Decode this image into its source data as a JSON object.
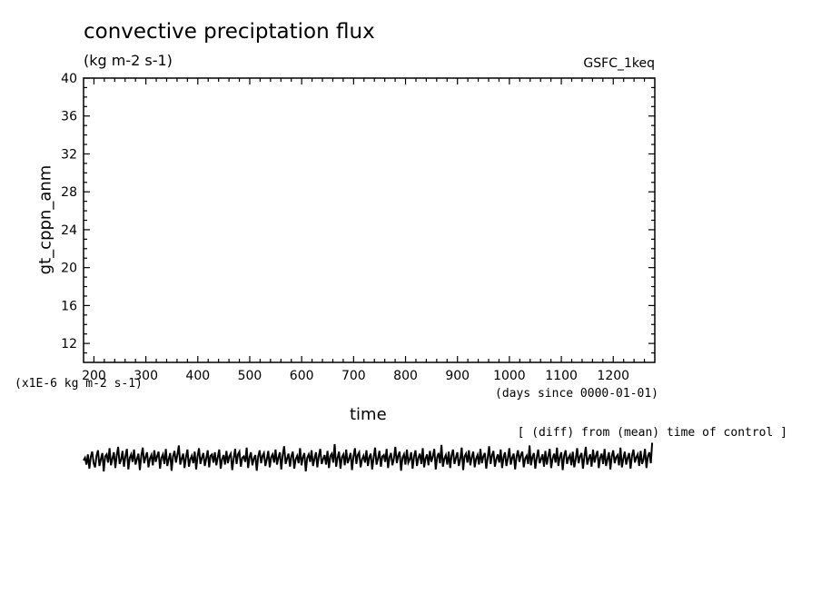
{
  "chart_data": {
    "type": "line",
    "title": "convective preciptation flux",
    "units": "(kg m-2 s-1)",
    "model": "GSFC_1keq",
    "ylabel": "gt_cppn_anm",
    "xlabel": "time",
    "scale_note": "(x1E-6 kg m-2 s-1)",
    "x_units": "(days since 0000-01-01)",
    "diff_note": "[ (diff) from (mean) time of control ]",
    "xlim": [
      180,
      1280
    ],
    "ylim": [
      10,
      40
    ],
    "xticks": [
      200,
      300,
      400,
      500,
      600,
      700,
      800,
      900,
      1000,
      1100,
      1200
    ],
    "yticks": [
      12,
      16,
      20,
      24,
      28,
      32,
      36,
      40
    ],
    "grid": false,
    "series": [
      {
        "x_start": 180,
        "x_end": 1275,
        "values": [
          0.0,
          0.4,
          -0.6,
          0.9,
          -1.2,
          0.5,
          1.3,
          -0.4,
          -1.0,
          0.7,
          1.5,
          -0.8,
          0.2,
          1.1,
          -1.6,
          0.6,
          0.9,
          -0.3,
          1.8,
          -0.7,
          0.3,
          1.2,
          -1.1,
          0.8,
          2.0,
          -0.5,
          0.1,
          1.4,
          -0.9,
          0.6,
          1.7,
          -1.3,
          0.4,
          0.9,
          -0.2,
          1.6,
          -0.6,
          0.2,
          1.0,
          -1.4,
          0.7,
          1.9,
          -0.4,
          0.5,
          1.2,
          -1.0,
          0.3,
          0.8,
          -0.7,
          1.5,
          -0.2,
          0.6,
          1.3,
          -1.2,
          0.4,
          0.9,
          -0.5,
          1.7,
          -0.8,
          0.2,
          1.1,
          -1.5,
          0.6,
          1.4,
          -0.3,
          0.8,
          2.2,
          -0.6,
          0.3,
          1.0,
          -1.1,
          0.5,
          1.6,
          -0.9,
          0.2,
          0.7,
          -0.4,
          1.3,
          -1.3,
          0.6,
          1.8,
          -0.5,
          0.4,
          1.1,
          -0.8,
          0.3,
          1.5,
          -1.0,
          0.7,
          0.9,
          -0.3,
          1.2,
          -0.7,
          0.5,
          1.6,
          -1.2,
          0.2,
          0.8,
          -0.6,
          1.4,
          -0.4,
          0.6,
          1.0,
          -1.4,
          0.3,
          1.7,
          -0.5,
          0.9,
          1.3,
          -0.9,
          0.4,
          0.6,
          -0.2,
          1.9,
          -1.1,
          0.5,
          1.2,
          -0.7,
          0.3,
          0.8,
          -1.5,
          0.6,
          1.5,
          -0.4,
          0.7,
          1.1,
          -0.8,
          0.2,
          1.4,
          -1.0,
          0.5,
          0.9,
          -0.3,
          1.6,
          -0.6,
          0.4,
          1.2,
          -1.3,
          0.8,
          2.1,
          -0.5,
          0.3,
          1.0,
          -0.9,
          0.6,
          1.3,
          -1.2,
          0.2,
          0.7,
          -0.4,
          1.8,
          -0.7,
          0.5,
          1.1,
          -1.6,
          0.4,
          0.9,
          -0.2,
          1.5,
          -0.8,
          0.3,
          1.2,
          -1.0,
          0.6,
          1.7,
          -0.5,
          0.2,
          0.8,
          -0.6,
          1.4,
          -1.1,
          0.7,
          1.0,
          -0.3,
          2.4,
          -0.9,
          0.4,
          1.3,
          -1.2,
          0.5,
          0.9,
          -0.7,
          1.6,
          -0.4,
          0.3,
          1.1,
          -1.4,
          0.6,
          1.8,
          -0.5,
          0.8,
          1.2,
          -1.0,
          0.2,
          0.7,
          -0.3,
          1.5,
          -0.8,
          0.5,
          1.0,
          -1.3,
          0.4,
          1.9,
          -0.6,
          0.3,
          1.4,
          -0.9,
          0.6,
          0.8,
          -0.2,
          1.7,
          -1.1,
          0.5,
          1.1,
          -0.7,
          0.3,
          2.0,
          -0.4,
          0.7,
          1.3,
          -1.5,
          0.4,
          0.9,
          -0.6,
          1.6,
          -0.3,
          0.2,
          1.2,
          -1.2,
          0.6,
          1.5,
          -0.8,
          0.4,
          1.0,
          -0.5,
          1.8,
          -1.0,
          0.3,
          0.9,
          -0.7,
          1.4,
          -0.2,
          0.6,
          1.7,
          -1.3,
          0.5,
          1.1,
          -0.4,
          2.3,
          -0.9,
          0.3,
          0.8,
          -0.6,
          1.3,
          -1.1,
          0.7,
          1.6,
          -0.5,
          0.4,
          1.2,
          -0.8,
          0.2,
          1.9,
          -1.4,
          0.6,
          1.0,
          -0.3,
          1.5,
          -0.7,
          0.5,
          1.3,
          -1.0,
          0.3,
          0.8,
          -0.6,
          1.7,
          -0.4,
          0.6,
          1.1,
          -1.2,
          0.4,
          2.1,
          -0.5,
          0.7,
          1.4,
          -0.9,
          0.2,
          0.9,
          -0.3,
          1.6,
          -1.1,
          0.5,
          1.2,
          -0.8,
          0.3,
          1.8,
          -0.6,
          0.4,
          1.0,
          -1.3,
          0.6,
          1.5,
          -0.2,
          0.8,
          1.3,
          -1.0,
          0.3,
          0.7,
          -0.5,
          2.2,
          -0.7,
          0.5,
          1.1,
          -1.2,
          0.4,
          1.6,
          -0.4,
          0.2,
          0.9,
          -0.9,
          1.4,
          -0.6,
          0.6,
          1.7,
          -1.1,
          0.3,
          1.0,
          -0.3,
          1.9,
          -0.8,
          0.5,
          1.2,
          -1.4,
          0.7,
          1.5,
          -0.5,
          0.4,
          0.8,
          -0.7,
          1.3,
          -1.0,
          0.2,
          1.8,
          -0.4,
          0.6,
          1.1,
          -1.2,
          0.5,
          2.0,
          -0.6,
          0.3,
          0.9,
          -0.9,
          1.6,
          -0.3,
          0.7,
          1.4,
          -1.1,
          0.4,
          1.0,
          -0.5,
          1.7,
          -0.8,
          0.2,
          1.2,
          -1.3,
          0.6,
          1.5,
          -0.4,
          0.5,
          0.8,
          -0.7,
          1.9,
          -1.0,
          0.3,
          1.3,
          -0.6,
          0.4,
          1.1,
          -1.2,
          0.7,
          1.6,
          -0.3,
          0.5,
          0.9,
          -0.8,
          1.4,
          -0.5,
          0.2,
          1.7,
          -1.1,
          0.6,
          1.2,
          -0.4,
          2.6
        ]
      }
    ]
  }
}
